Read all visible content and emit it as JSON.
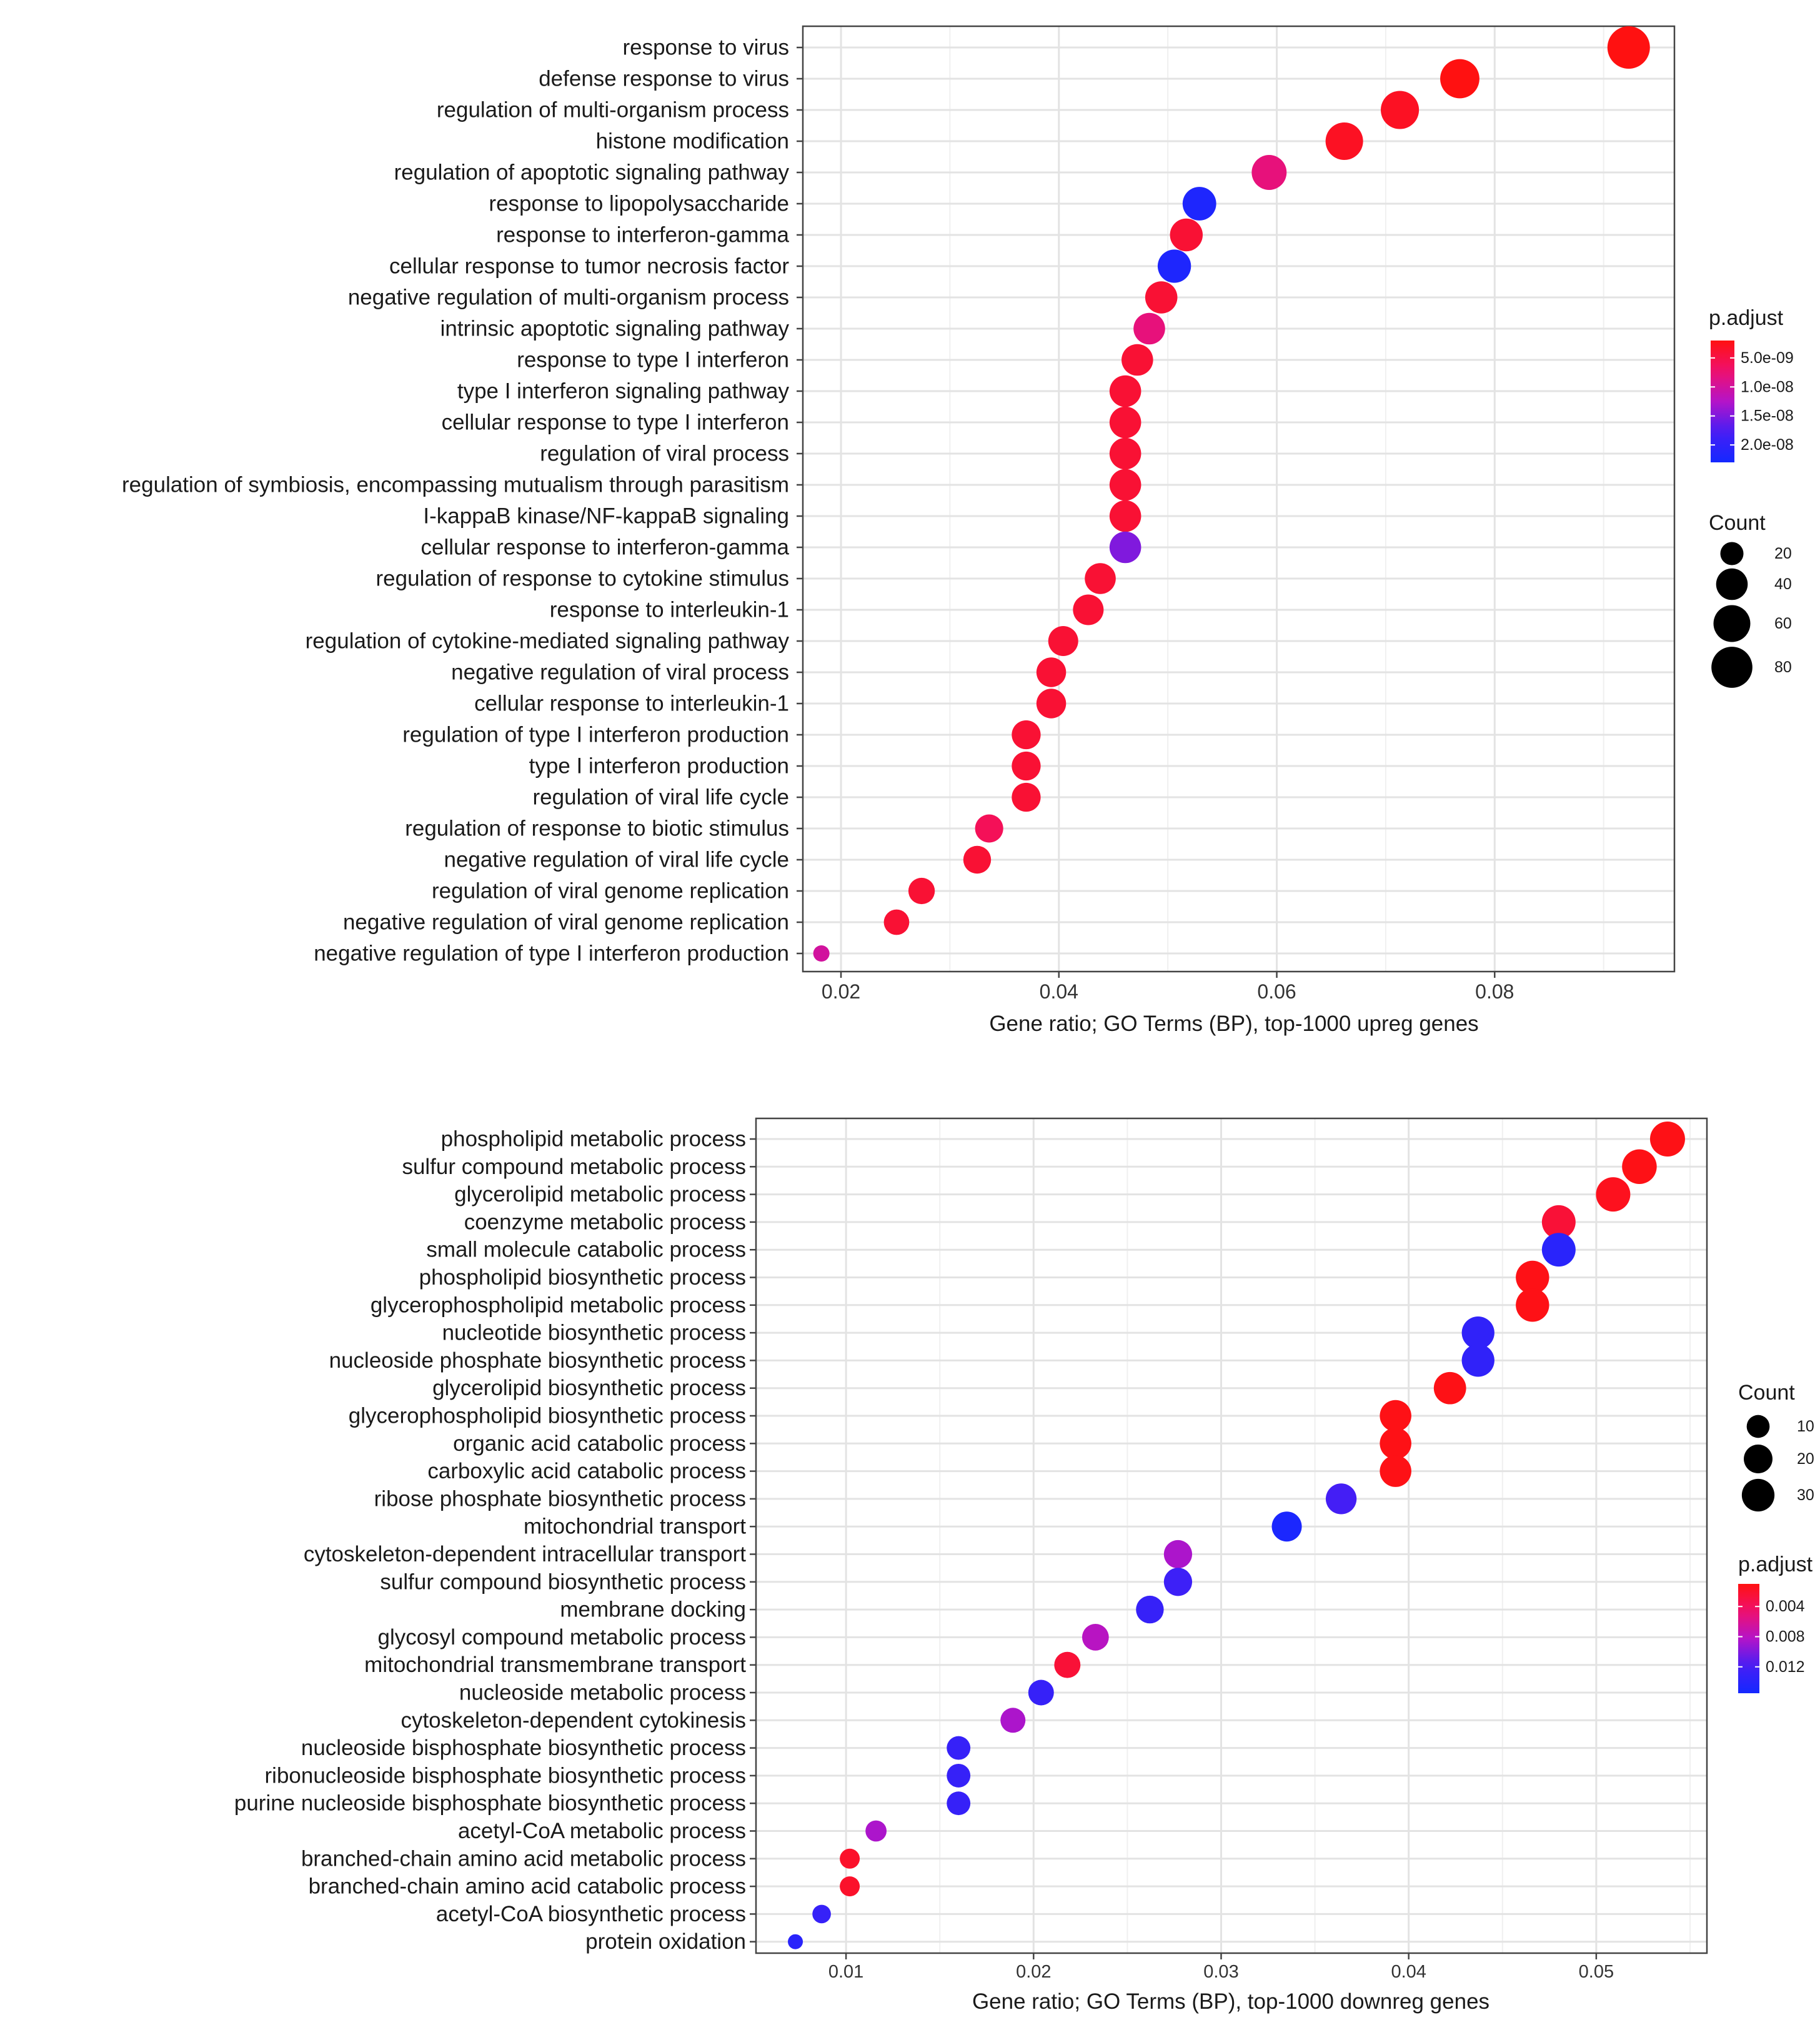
{
  "chart_data": [
    {
      "type": "scatter",
      "title": "",
      "xlabel": "Gene ratio; GO Terms (BP), top-1000 upreg genes",
      "ylabel": "",
      "xlim": [
        0.0165,
        0.0965
      ],
      "xticks": [
        0.02,
        0.04,
        0.06,
        0.08
      ],
      "xtick_labels": [
        "0.02",
        "0.04",
        "0.06",
        "0.08"
      ],
      "terms": [
        "response to virus",
        "defense response to virus",
        "regulation of multi-organism process",
        "histone modification",
        "regulation of apoptotic signaling pathway",
        "response to lipopolysaccharide",
        "response to interferon-gamma",
        "cellular response to tumor necrosis factor",
        "negative regulation of multi-organism process",
        "intrinsic apoptotic signaling pathway",
        "response to type I interferon",
        "type I interferon signaling pathway",
        "cellular response to type I interferon",
        "regulation of viral process",
        "regulation of symbiosis, encompassing mutualism through parasitism",
        "I-kappaB kinase/NF-kappaB signaling",
        "cellular response to interferon-gamma",
        "regulation of response to cytokine stimulus",
        "response to interleukin-1",
        "regulation of cytokine-mediated signaling pathway",
        "negative regulation of viral process",
        "cellular response to interleukin-1",
        "regulation of type I interferon production",
        "type I interferon production",
        "regulation of viral life cycle",
        "regulation of response to biotic stimulus",
        "negative regulation of viral life cycle",
        "regulation of viral genome replication",
        "negative regulation of viral genome replication",
        "negative regulation of type I interferon production"
      ],
      "gene_ratio": [
        0.0923,
        0.0768,
        0.0713,
        0.0662,
        0.0593,
        0.0529,
        0.0517,
        0.0506,
        0.0494,
        0.0483,
        0.0472,
        0.0461,
        0.0461,
        0.0461,
        0.0461,
        0.0461,
        0.0461,
        0.0438,
        0.0427,
        0.0404,
        0.0393,
        0.0393,
        0.037,
        0.037,
        0.037,
        0.0336,
        0.0325,
        0.0274,
        0.0251,
        0.0182
      ],
      "count": [
        88,
        71,
        66,
        63,
        52,
        47,
        44,
        46,
        42,
        40,
        40,
        40,
        40,
        40,
        40,
        40,
        40,
        38,
        37,
        35,
        34,
        34,
        32,
        32,
        32,
        30,
        29,
        26,
        24,
        15
      ],
      "p_adjust": [
        2e-09,
        2e-09,
        3e-09,
        3e-09,
        8e-09,
        2.2e-08,
        4e-09,
        2.2e-08,
        4e-09,
        8e-09,
        4e-09,
        4e-09,
        4e-09,
        4e-09,
        4e-09,
        4e-09,
        1.5e-08,
        4e-09,
        4e-09,
        4e-09,
        4e-09,
        4e-09,
        4e-09,
        4e-09,
        4e-09,
        6e-09,
        4e-09,
        4e-09,
        4e-09,
        1e-08
      ],
      "legend": {
        "color_title": "p.adjust",
        "color_range": [
          2e-09,
          2.3e-08
        ],
        "color_ticks": [
          5e-09,
          1e-08,
          1.5e-08,
          2e-08
        ],
        "color_tick_labels": [
          "5.0e-09",
          "1.0e-08",
          "1.5e-08",
          "2.0e-08"
        ],
        "size_title": "Count",
        "size_values": [
          20,
          40,
          60,
          80
        ],
        "size_labels": [
          "20",
          "40",
          "60",
          "80"
        ],
        "size_range": [
          15,
          88
        ]
      }
    },
    {
      "type": "scatter",
      "title": "",
      "xlabel": "Gene ratio; GO Terms (BP), top-1000 downreg genes",
      "ylabel": "",
      "xlim": [
        0.0052,
        0.0559
      ],
      "xticks": [
        0.01,
        0.02,
        0.03,
        0.04,
        0.05
      ],
      "xtick_labels": [
        "0.01",
        "0.02",
        "0.03",
        "0.04",
        "0.05"
      ],
      "terms": [
        "phospholipid metabolic process",
        "sulfur compound metabolic process",
        "glycerolipid metabolic process",
        "coenzyme metabolic process",
        "small molecule catabolic process",
        "phospholipid biosynthetic process",
        "glycerophospholipid metabolic process",
        "nucleotide biosynthetic process",
        "nucleoside phosphate biosynthetic process",
        "glycerolipid biosynthetic process",
        "glycerophospholipid biosynthetic process",
        "organic acid catabolic process",
        "carboxylic acid catabolic process",
        "ribose phosphate biosynthetic process",
        "mitochondrial transport",
        "cytoskeleton-dependent intracellular transport",
        "sulfur compound biosynthetic process",
        "membrane docking",
        "glycosyl compound metabolic process",
        "mitochondrial transmembrane transport",
        "nucleoside metabolic process",
        "cytoskeleton-dependent cytokinesis",
        "nucleoside bisphosphate biosynthetic process",
        "ribonucleoside bisphosphate biosynthetic process",
        "purine nucleoside bisphosphate biosynthetic process",
        "acetyl-CoA metabolic process",
        "branched-chain amino acid metabolic process",
        "branched-chain amino acid catabolic process",
        "acetyl-CoA biosynthetic process",
        "protein oxidation"
      ],
      "gene_ratio": [
        0.0538,
        0.0523,
        0.0509,
        0.048,
        0.048,
        0.0466,
        0.0466,
        0.0437,
        0.0437,
        0.0422,
        0.0393,
        0.0393,
        0.0393,
        0.0364,
        0.0335,
        0.0277,
        0.0277,
        0.0262,
        0.0233,
        0.0218,
        0.0204,
        0.0189,
        0.016,
        0.016,
        0.016,
        0.0116,
        0.0102,
        0.0102,
        0.0087,
        0.0073
      ],
      "count": [
        37,
        36,
        35,
        33,
        33,
        32,
        32,
        30,
        30,
        29,
        27,
        27,
        27,
        25,
        23,
        19,
        19,
        18,
        16,
        15,
        14,
        13,
        11,
        11,
        11,
        8,
        7,
        7,
        6,
        5
      ],
      "p_adjust": [
        0.0012,
        0.0012,
        0.0015,
        0.0025,
        0.014,
        0.0012,
        0.0012,
        0.0135,
        0.0135,
        0.0012,
        0.0012,
        0.0012,
        0.0012,
        0.012,
        0.015,
        0.0085,
        0.0125,
        0.013,
        0.008,
        0.0025,
        0.013,
        0.0085,
        0.013,
        0.013,
        0.013,
        0.0085,
        0.002,
        0.002,
        0.013,
        0.014
      ],
      "legend": {
        "color_title": "p.adjust",
        "color_range": [
          0.001,
          0.0155
        ],
        "color_ticks": [
          0.004,
          0.008,
          0.012
        ],
        "color_tick_labels": [
          "0.004",
          "0.008",
          "0.012"
        ],
        "size_title": "Count",
        "size_values": [
          10,
          20,
          30
        ],
        "size_labels": [
          "10",
          "20",
          "30"
        ],
        "size_range": [
          5,
          37
        ]
      }
    }
  ]
}
